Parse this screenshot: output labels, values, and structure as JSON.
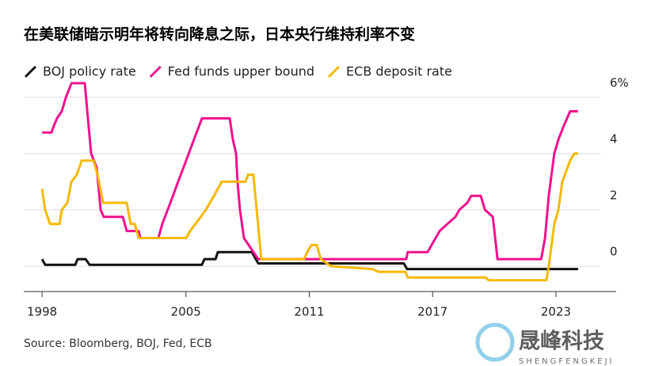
{
  "chart_data": {
    "type": "line",
    "title": "在美联储暗示明年将转向降息之际，日本央行维持利率不变",
    "source": "Source: Bloomberg, BOJ, Fed, ECB",
    "watermark": "晟峰科技",
    "watermark_sub": "SHENGFENGKEJI",
    "xlim": [
      1997.11,
      2025.93
    ],
    "xticks": [
      1998,
      2005,
      2011,
      2017,
      2023
    ],
    "ylim": [
      -0.9,
      6.5
    ],
    "yticks": [
      {
        "value": 6,
        "label": "6%"
      },
      4,
      2,
      0
    ],
    "grid": true,
    "series": [
      {
        "name": "BOJ policy rate",
        "color": "#111111",
        "x": [
          1998.0,
          1998.15,
          1999.62,
          1999.73,
          2000.12,
          2000.31,
          2005.78,
          2005.9,
          2006.44,
          2006.55,
          2008.21,
          2008.36,
          2008.52,
          2015.6,
          2015.76,
          2024.08
        ],
        "values": [
          0.25,
          0.05,
          0.05,
          0.25,
          0.25,
          0.05,
          0.05,
          0.25,
          0.25,
          0.5,
          0.5,
          0.3,
          0.1,
          0.1,
          -0.1,
          -0.1
        ]
      },
      {
        "name": "Fed funds upper bound",
        "color": "#f0118f",
        "x": [
          1998.0,
          1998.46,
          1998.58,
          1998.73,
          1998.96,
          1999.16,
          1999.43,
          2000.08,
          2000.2,
          2000.39,
          2000.66,
          2000.85,
          2001.0,
          2001.93,
          2002.12,
          2002.7,
          2002.78,
          2003.66,
          2003.85,
          2004.24,
          2004.62,
          2005.01,
          2005.39,
          2005.78,
          2007.13,
          2007.28,
          2007.44,
          2007.51,
          2007.63,
          2007.82,
          2008.52,
          2015.72,
          2015.79,
          2016.76,
          2016.95,
          2017.34,
          2017.72,
          2018.11,
          2018.3,
          2018.69,
          2018.88,
          2019.34,
          2019.55,
          2019.93,
          2020.16,
          2022.28,
          2022.47,
          2022.65,
          2022.92,
          2023.12,
          2023.39,
          2023.69,
          2024.08
        ],
        "values": [
          4.75,
          4.75,
          5.0,
          5.25,
          5.5,
          6.0,
          6.5,
          6.5,
          5.5,
          4.0,
          3.5,
          2.0,
          1.75,
          1.75,
          1.25,
          1.25,
          1.0,
          1.0,
          1.5,
          2.25,
          3.0,
          3.75,
          4.5,
          5.25,
          5.25,
          4.5,
          4.0,
          3.0,
          2.0,
          1.0,
          0.25,
          0.25,
          0.5,
          0.5,
          0.75,
          1.25,
          1.5,
          1.75,
          2.0,
          2.25,
          2.5,
          2.5,
          2.0,
          1.75,
          0.25,
          0.25,
          1.0,
          2.5,
          4.0,
          4.5,
          5.0,
          5.5,
          5.5
        ]
      },
      {
        "name": "ECB deposit rate",
        "color": "#f5b800",
        "x": [
          1998.0,
          1998.15,
          1998.39,
          1998.85,
          1998.96,
          1999.23,
          1999.43,
          1999.69,
          1999.93,
          2000.5,
          2000.7,
          2000.97,
          2001.08,
          2002.12,
          2002.31,
          2002.51,
          2002.7,
          2005.01,
          2005.2,
          2005.97,
          2006.36,
          2006.74,
          2007.9,
          2008.02,
          2008.28,
          2008.44,
          2008.67,
          2010.75,
          2010.9,
          2011.1,
          2011.37,
          2011.56,
          2012.06,
          2014.06,
          2014.37,
          2015.68,
          2015.79,
          2019.57,
          2019.73,
          2022.54,
          2022.65,
          2022.92,
          2023.12,
          2023.31,
          2023.69,
          2023.89,
          2024.08
        ],
        "values": [
          2.75,
          2.0,
          1.5,
          1.5,
          2.0,
          2.25,
          3.0,
          3.25,
          3.75,
          3.75,
          3.25,
          2.25,
          2.25,
          2.25,
          1.5,
          1.5,
          1.0,
          1.0,
          1.25,
          2.0,
          2.5,
          3.0,
          3.0,
          3.25,
          3.25,
          2.0,
          0.25,
          0.25,
          0.5,
          0.75,
          0.75,
          0.25,
          0.0,
          -0.1,
          -0.2,
          -0.2,
          -0.4,
          -0.4,
          -0.5,
          -0.5,
          0.0,
          1.5,
          2.0,
          3.0,
          3.75,
          4.0,
          4.0
        ]
      }
    ]
  }
}
